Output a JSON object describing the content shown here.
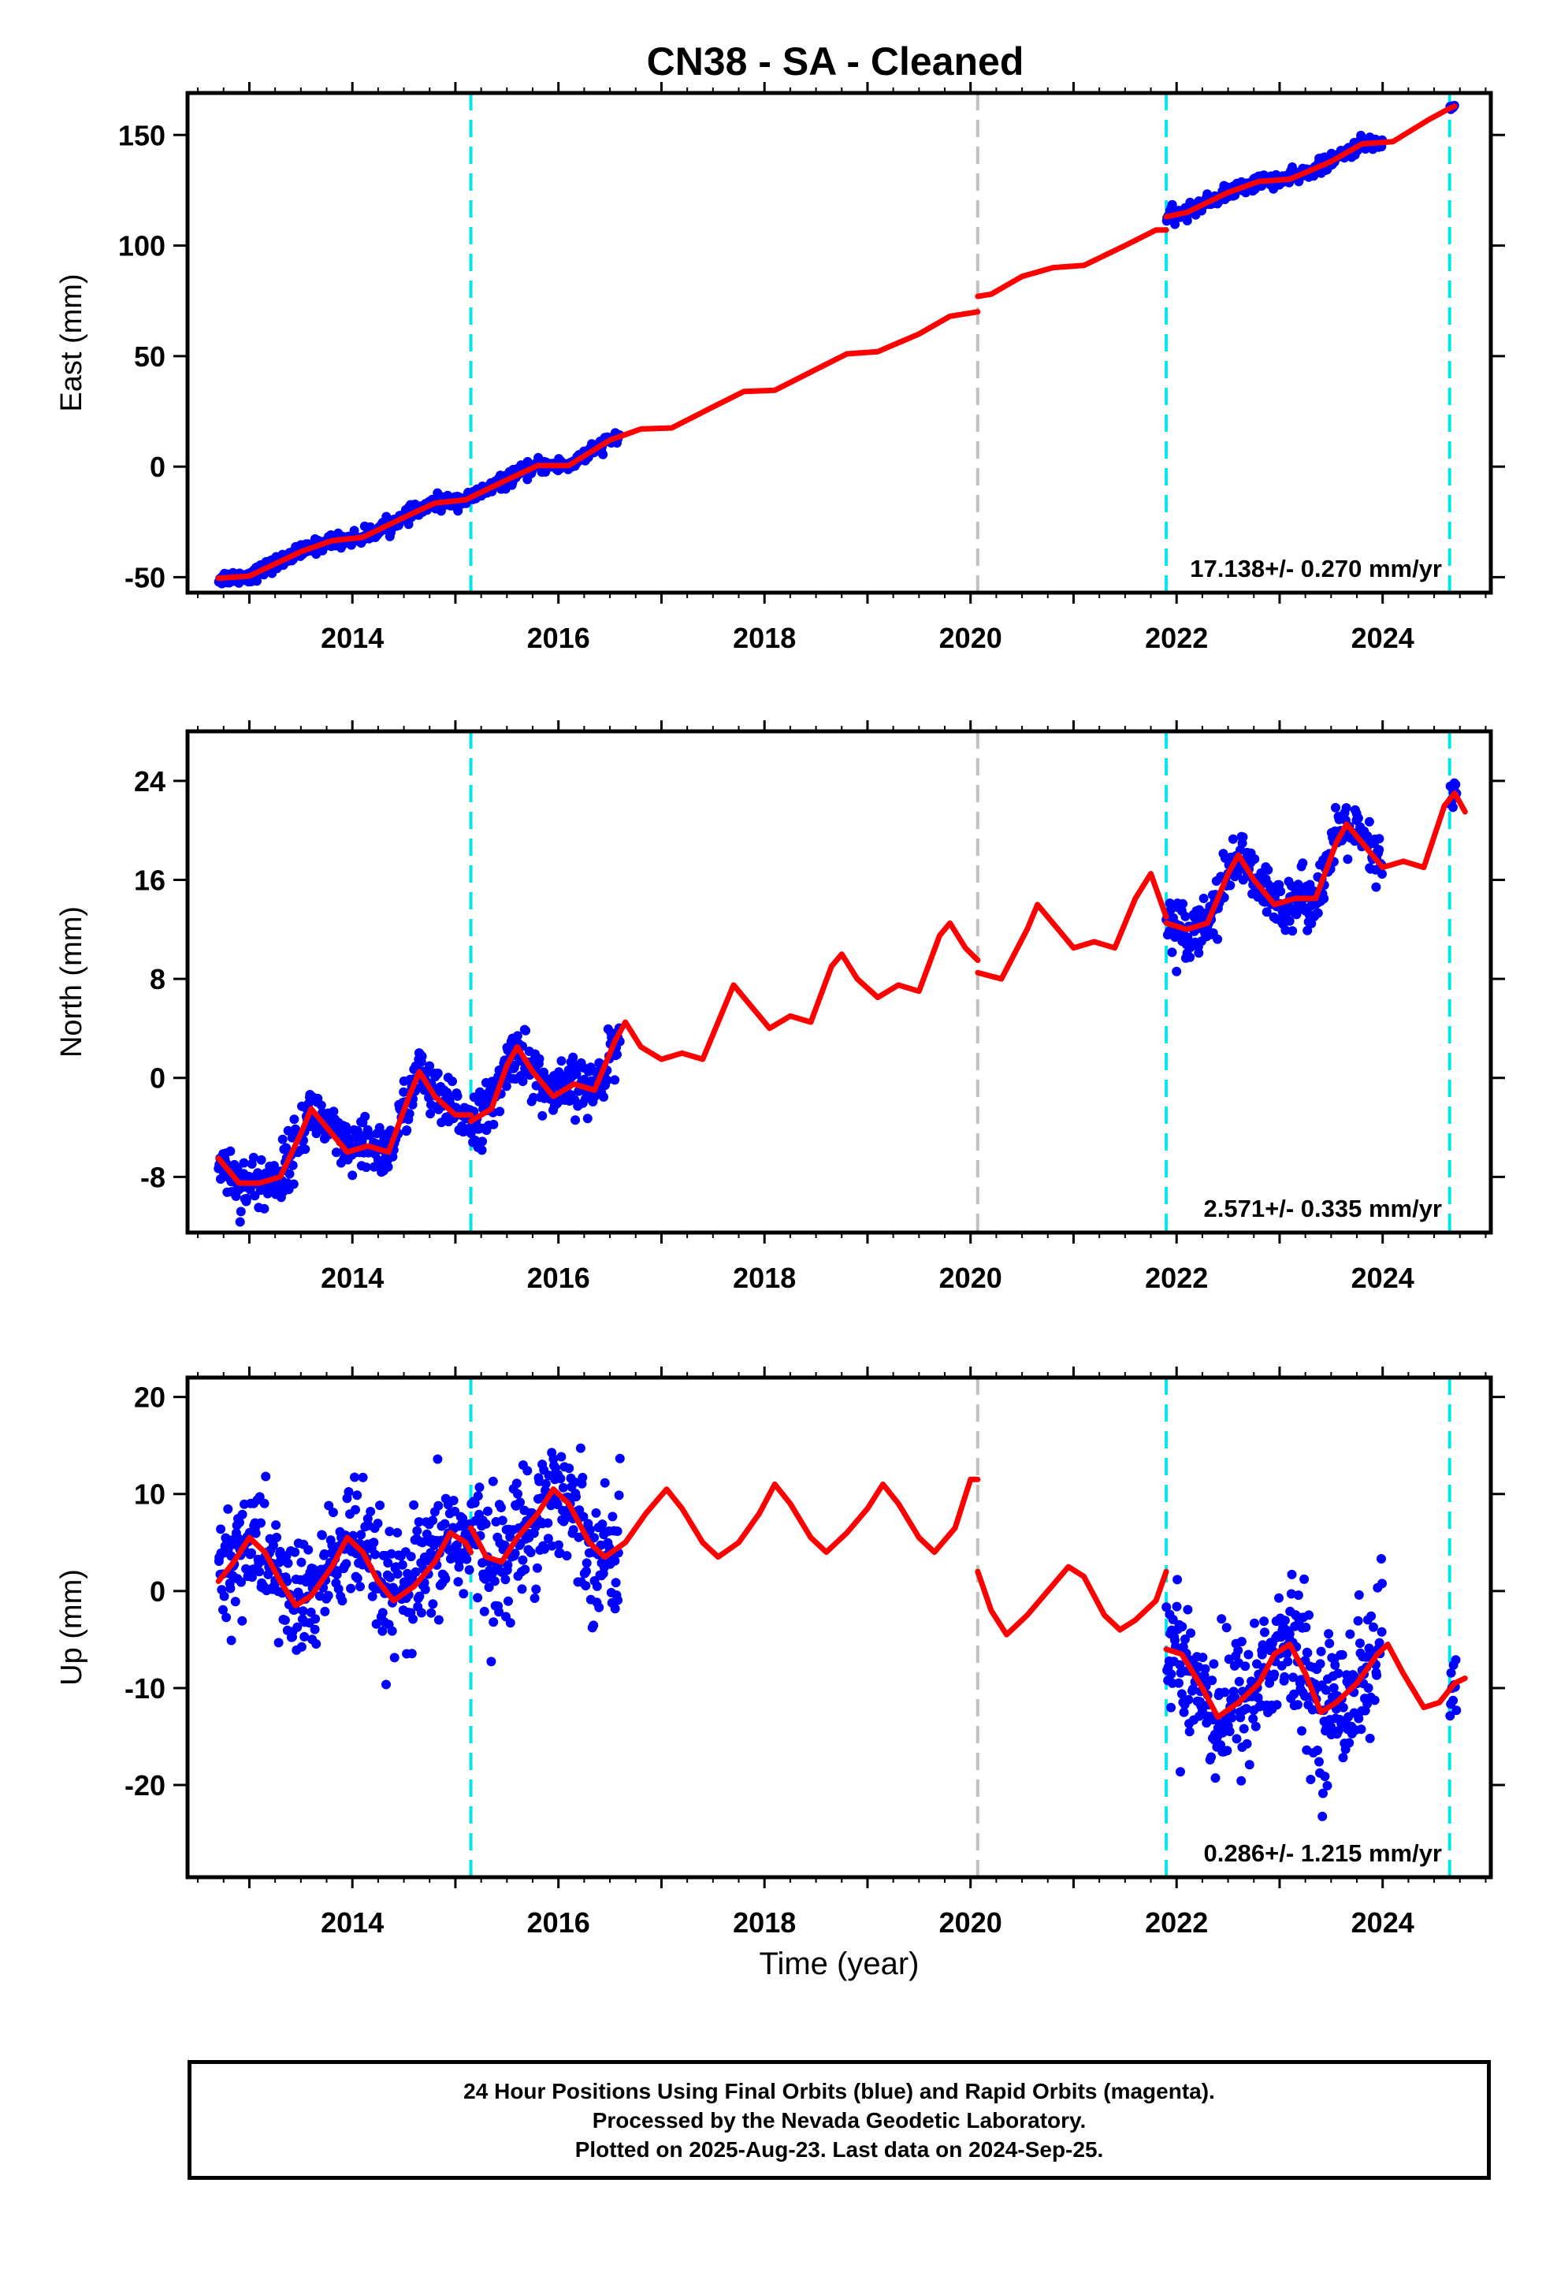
{
  "title": "CN38  - SA - Cleaned",
  "xlabel": "Time (year)",
  "colors": {
    "data": "#0000ff",
    "model": "#ff0000",
    "equipment_change": "#00e5ee",
    "other_offset": "#c0c0c0",
    "frame": "#000000"
  },
  "chart_data": [
    {
      "type": "scatter",
      "component": "east",
      "ylabel": "East (mm)",
      "xlim": [
        2012.4,
        2025.05
      ],
      "ylim": [
        -57,
        169
      ],
      "xticks": [
        2014,
        2016,
        2018,
        2020,
        2022,
        2024
      ],
      "yticks": [
        -50,
        0,
        50,
        100,
        150
      ],
      "rate_label": "17.138+/- 0.270 mm/yr",
      "vertical_lines": [
        {
          "x": 2015.15,
          "kind": "equipment_change"
        },
        {
          "x": 2020.07,
          "kind": "other_offset"
        },
        {
          "x": 2021.9,
          "kind": "equipment_change"
        },
        {
          "x": 2024.65,
          "kind": "equipment_change"
        }
      ],
      "model_segments": [
        [
          [
            2012.7,
            -50.5
          ],
          [
            2013.0,
            -49.5
          ],
          [
            2013.5,
            -38.5
          ],
          [
            2013.8,
            -33.5
          ],
          [
            2014.1,
            -32
          ],
          [
            2014.5,
            -23
          ],
          [
            2014.8,
            -16.5
          ],
          [
            2015.1,
            -15
          ],
          [
            2015.5,
            -6
          ],
          [
            2015.8,
            0.5
          ],
          [
            2016.1,
            0.5
          ],
          [
            2016.5,
            12
          ],
          [
            2016.8,
            17
          ],
          [
            2017.1,
            17.5
          ],
          [
            2017.5,
            27
          ],
          [
            2017.8,
            34
          ],
          [
            2018.1,
            34.5
          ],
          [
            2018.5,
            44
          ],
          [
            2018.8,
            51
          ],
          [
            2019.1,
            52
          ],
          [
            2019.5,
            60
          ],
          [
            2019.8,
            68
          ],
          [
            2020.07,
            70
          ]
        ],
        [
          [
            2020.07,
            77
          ],
          [
            2020.2,
            78
          ],
          [
            2020.5,
            86
          ],
          [
            2020.8,
            90
          ],
          [
            2021.1,
            91
          ],
          [
            2021.5,
            100
          ],
          [
            2021.8,
            107
          ],
          [
            2021.9,
            107
          ]
        ],
        [
          [
            2021.9,
            113
          ],
          [
            2022.1,
            115
          ],
          [
            2022.5,
            124
          ],
          [
            2022.8,
            129
          ],
          [
            2023.1,
            130
          ],
          [
            2023.5,
            138
          ],
          [
            2023.8,
            146
          ],
          [
            2024.1,
            147
          ],
          [
            2024.45,
            157
          ],
          [
            2024.65,
            162
          ],
          [
            2024.7,
            163
          ]
        ]
      ],
      "data_segments": [
        {
          "from": 2012.7,
          "to": 2016.6,
          "sigma": 1.6,
          "density": 140
        },
        {
          "from": 2021.9,
          "to": 2024.0,
          "sigma": 1.6,
          "density": 140
        },
        {
          "from": 2024.65,
          "to": 2024.72,
          "sigma": 0.8,
          "density": 140
        }
      ]
    },
    {
      "type": "scatter",
      "component": "north",
      "ylabel": "North (mm)",
      "xlim": [
        2012.4,
        2025.05
      ],
      "ylim": [
        -12.5,
        28
      ],
      "xticks": [
        2014,
        2016,
        2018,
        2020,
        2022,
        2024
      ],
      "yticks": [
        -8,
        0,
        8,
        16,
        24
      ],
      "rate_label": "2.571+/- 0.335 mm/yr",
      "vertical_lines": [
        {
          "x": 2015.15,
          "kind": "equipment_change"
        },
        {
          "x": 2020.07,
          "kind": "other_offset"
        },
        {
          "x": 2021.9,
          "kind": "equipment_change"
        },
        {
          "x": 2024.65,
          "kind": "equipment_change"
        }
      ],
      "model_segments": [
        [
          [
            2012.7,
            -6.5
          ],
          [
            2012.9,
            -8.5
          ],
          [
            2013.1,
            -8.5
          ],
          [
            2013.3,
            -8.0
          ],
          [
            2013.5,
            -4.5
          ],
          [
            2013.6,
            -2.5
          ],
          [
            2013.75,
            -4.0
          ],
          [
            2013.95,
            -6.0
          ],
          [
            2014.15,
            -5.5
          ],
          [
            2014.35,
            -6.0
          ],
          [
            2014.55,
            -1.5
          ],
          [
            2014.65,
            0.5
          ],
          [
            2014.8,
            -1.5
          ],
          [
            2015.0,
            -3.0
          ],
          [
            2015.15,
            -3.0
          ]
        ],
        [
          [
            2015.15,
            -3.5
          ],
          [
            2015.35,
            -2.5
          ],
          [
            2015.5,
            1.0
          ],
          [
            2015.6,
            2.5
          ],
          [
            2015.75,
            0.5
          ],
          [
            2015.95,
            -1.5
          ],
          [
            2016.15,
            -0.5
          ],
          [
            2016.35,
            -1.0
          ],
          [
            2016.55,
            3.0
          ],
          [
            2016.65,
            4.5
          ],
          [
            2016.8,
            2.5
          ],
          [
            2017.0,
            1.5
          ],
          [
            2017.2,
            2.0
          ],
          [
            2017.4,
            1.5
          ],
          [
            2017.6,
            5.5
          ],
          [
            2017.7,
            7.5
          ],
          [
            2017.85,
            6.0
          ],
          [
            2018.05,
            4.0
          ],
          [
            2018.25,
            5.0
          ],
          [
            2018.45,
            4.5
          ],
          [
            2018.65,
            9.0
          ],
          [
            2018.75,
            10.0
          ],
          [
            2018.9,
            8.0
          ],
          [
            2019.1,
            6.5
          ],
          [
            2019.3,
            7.5
          ],
          [
            2019.5,
            7.0
          ],
          [
            2019.7,
            11.5
          ],
          [
            2019.8,
            12.5
          ],
          [
            2019.95,
            10.5
          ],
          [
            2020.07,
            9.5
          ]
        ],
        [
          [
            2020.07,
            8.5
          ],
          [
            2020.3,
            8.0
          ],
          [
            2020.55,
            12.0
          ],
          [
            2020.65,
            14.0
          ],
          [
            2020.8,
            12.5
          ],
          [
            2021.0,
            10.5
          ],
          [
            2021.2,
            11.0
          ],
          [
            2021.4,
            10.5
          ],
          [
            2021.6,
            14.5
          ],
          [
            2021.75,
            16.5
          ],
          [
            2021.9,
            13.0
          ]
        ],
        [
          [
            2021.9,
            12.5
          ],
          [
            2022.1,
            12.0
          ],
          [
            2022.3,
            12.5
          ],
          [
            2022.5,
            16.5
          ],
          [
            2022.6,
            18.0
          ],
          [
            2022.75,
            16.0
          ],
          [
            2022.95,
            14.0
          ],
          [
            2023.15,
            14.5
          ],
          [
            2023.35,
            14.5
          ],
          [
            2023.55,
            19.0
          ],
          [
            2023.65,
            20.5
          ],
          [
            2023.8,
            19.0
          ],
          [
            2024.0,
            17.0
          ],
          [
            2024.2,
            17.5
          ],
          [
            2024.4,
            17.0
          ],
          [
            2024.6,
            22.0
          ],
          [
            2024.7,
            23.0
          ],
          [
            2024.8,
            21.5
          ]
        ]
      ],
      "data_segments": [
        {
          "from": 2012.7,
          "to": 2016.6,
          "sigma": 1.1,
          "density": 150
        },
        {
          "from": 2021.9,
          "to": 2024.0,
          "sigma": 1.1,
          "density": 150
        },
        {
          "from": 2024.65,
          "to": 2024.72,
          "sigma": 1.0,
          "density": 150
        }
      ]
    },
    {
      "type": "scatter",
      "component": "up",
      "ylabel": "Up (mm)",
      "xlim": [
        2012.4,
        2025.05
      ],
      "ylim": [
        -29.5,
        22
      ],
      "xticks": [
        2014,
        2016,
        2018,
        2020,
        2022,
        2024
      ],
      "yticks": [
        -20,
        -10,
        0,
        10,
        20
      ],
      "rate_label": "0.286+/- 1.215 mm/yr",
      "vertical_lines": [
        {
          "x": 2015.15,
          "kind": "equipment_change"
        },
        {
          "x": 2020.07,
          "kind": "other_offset"
        },
        {
          "x": 2021.9,
          "kind": "equipment_change"
        },
        {
          "x": 2024.65,
          "kind": "equipment_change"
        }
      ],
      "model_segments": [
        [
          [
            2012.7,
            1.0
          ],
          [
            2012.85,
            3.0
          ],
          [
            2013.0,
            5.5
          ],
          [
            2013.15,
            4.0
          ],
          [
            2013.3,
            1.0
          ],
          [
            2013.45,
            -1.5
          ],
          [
            2013.6,
            -0.5
          ],
          [
            2013.8,
            2.5
          ],
          [
            2013.95,
            5.5
          ],
          [
            2014.1,
            4.0
          ],
          [
            2014.25,
            1.0
          ],
          [
            2014.4,
            -1.0
          ],
          [
            2014.6,
            0.5
          ],
          [
            2014.8,
            3.0
          ],
          [
            2014.95,
            6.0
          ],
          [
            2015.1,
            5.0
          ],
          [
            2015.15,
            4.0
          ]
        ],
        [
          [
            2015.15,
            6.5
          ],
          [
            2015.3,
            3.5
          ],
          [
            2015.45,
            3.0
          ],
          [
            2015.6,
            5.5
          ],
          [
            2015.8,
            8.0
          ],
          [
            2015.95,
            10.5
          ],
          [
            2016.1,
            9.0
          ],
          [
            2016.3,
            5.0
          ],
          [
            2016.45,
            3.5
          ],
          [
            2016.65,
            5.0
          ],
          [
            2016.85,
            8.0
          ],
          [
            2017.05,
            10.5
          ],
          [
            2017.2,
            8.5
          ],
          [
            2017.4,
            5.0
          ],
          [
            2017.55,
            3.5
          ],
          [
            2017.75,
            5.0
          ],
          [
            2017.95,
            8.0
          ],
          [
            2018.1,
            11.0
          ],
          [
            2018.25,
            9.0
          ],
          [
            2018.45,
            5.5
          ],
          [
            2018.6,
            4.0
          ],
          [
            2018.8,
            6.0
          ],
          [
            2019.0,
            8.5
          ],
          [
            2019.15,
            11.0
          ],
          [
            2019.3,
            9.0
          ],
          [
            2019.5,
            5.5
          ],
          [
            2019.65,
            4.0
          ],
          [
            2019.85,
            6.5
          ],
          [
            2020.0,
            11.5
          ],
          [
            2020.07,
            11.5
          ]
        ],
        [
          [
            2020.07,
            2.0
          ],
          [
            2020.2,
            -2.0
          ],
          [
            2020.35,
            -4.5
          ],
          [
            2020.55,
            -2.5
          ],
          [
            2020.75,
            0.0
          ],
          [
            2020.95,
            2.5
          ],
          [
            2021.1,
            1.5
          ],
          [
            2021.3,
            -2.5
          ],
          [
            2021.45,
            -4.0
          ],
          [
            2021.6,
            -3.0
          ],
          [
            2021.8,
            -1.0
          ],
          [
            2021.9,
            2.0
          ]
        ],
        [
          [
            2021.9,
            -6.0
          ],
          [
            2022.05,
            -6.5
          ],
          [
            2022.25,
            -10.0
          ],
          [
            2022.4,
            -13.0
          ],
          [
            2022.6,
            -11.5
          ],
          [
            2022.8,
            -9.5
          ],
          [
            2022.95,
            -6.5
          ],
          [
            2023.1,
            -5.5
          ],
          [
            2023.25,
            -8.5
          ],
          [
            2023.4,
            -12.5
          ],
          [
            2023.55,
            -11.5
          ],
          [
            2023.75,
            -9.5
          ],
          [
            2023.95,
            -6.5
          ],
          [
            2024.05,
            -5.5
          ],
          [
            2024.2,
            -8.5
          ],
          [
            2024.4,
            -12.0
          ],
          [
            2024.55,
            -11.5
          ],
          [
            2024.7,
            -9.5
          ],
          [
            2024.8,
            -9.0
          ]
        ]
      ],
      "data_segments": [
        {
          "from": 2012.7,
          "to": 2016.6,
          "sigma": 3.2,
          "density": 160
        },
        {
          "from": 2021.9,
          "to": 2024.0,
          "sigma": 3.6,
          "density": 170
        },
        {
          "from": 2024.65,
          "to": 2024.72,
          "sigma": 2.5,
          "density": 150
        }
      ]
    }
  ],
  "footer": {
    "line1": "24 Hour Positions Using Final Orbits (blue) and Rapid Orbits (magenta).",
    "line2": "Processed by the Nevada Geodetic Laboratory.",
    "line3": "Plotted on 2025-Aug-23. Last data on 2024-Sep-25."
  }
}
